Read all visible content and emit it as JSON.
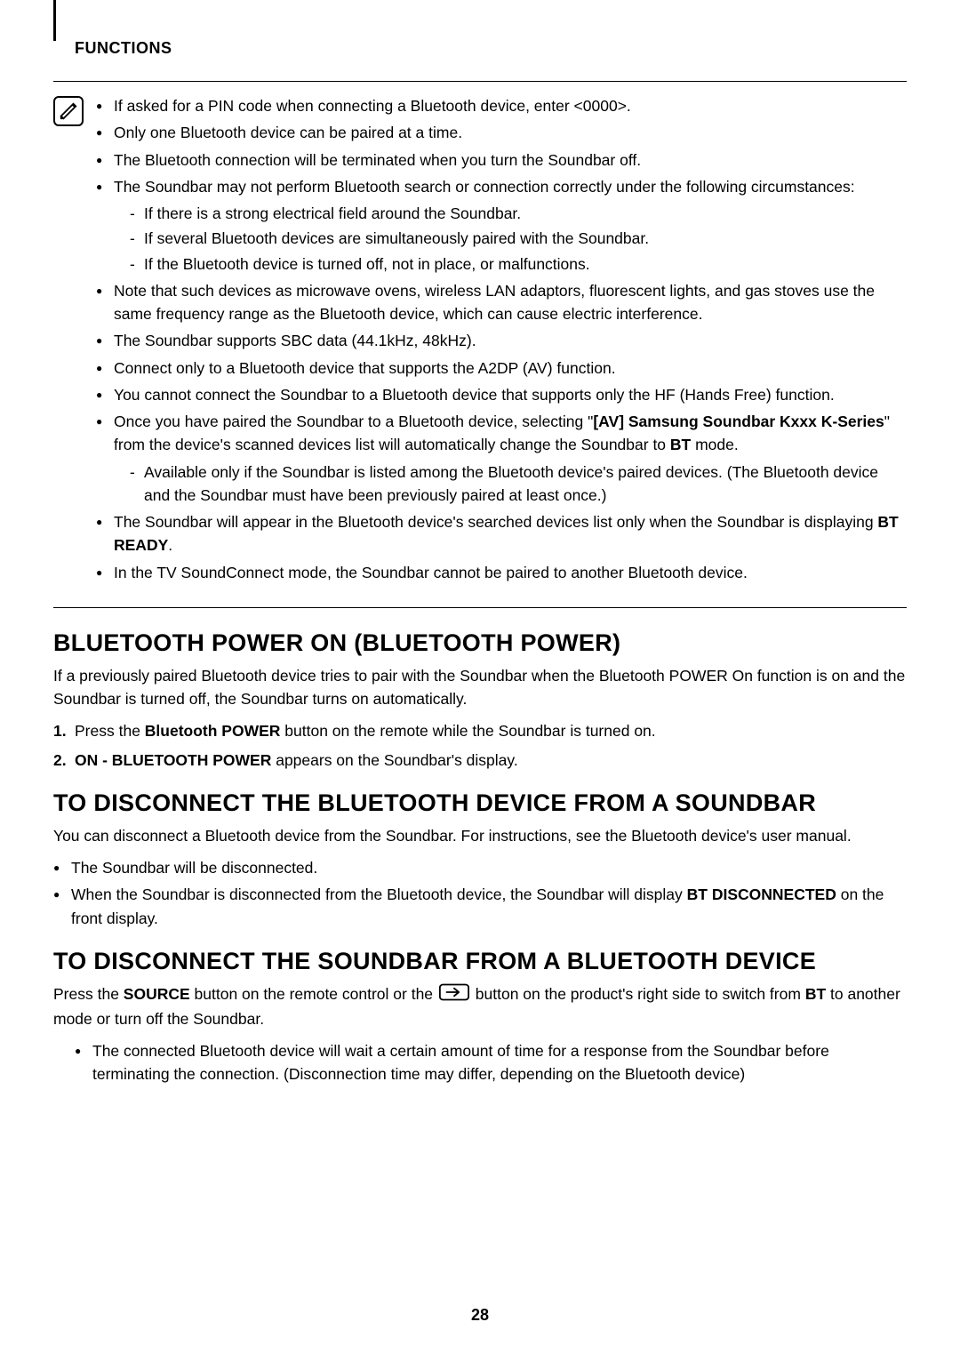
{
  "header": {
    "title": "FUNCTIONS"
  },
  "notes": {
    "items": [
      {
        "html": "If asked for a PIN code when connecting a Bluetooth device, enter <0000>."
      },
      {
        "html": "Only one Bluetooth device can be paired at a time."
      },
      {
        "html": "The Bluetooth connection will be terminated when you turn the Soundbar off."
      },
      {
        "html": "The Soundbar may not perform Bluetooth search or connection correctly under the following circumstances:",
        "sub": [
          "If there is a strong electrical field around the Soundbar.",
          "If several Bluetooth devices are simultaneously paired with the Soundbar.",
          "If the Bluetooth device is turned off, not in place, or malfunctions."
        ]
      },
      {
        "html": "Note that such devices as microwave ovens, wireless LAN adaptors, fluorescent lights, and gas stoves use the same frequency range as the Bluetooth device, which can cause electric interference."
      },
      {
        "html": "The Soundbar supports SBC data (44.1kHz, 48kHz)."
      },
      {
        "html": "Connect only to a Bluetooth device that supports the A2DP (AV) function."
      },
      {
        "html": "You cannot connect the Soundbar to a Bluetooth device that supports only the HF (Hands Free) function."
      },
      {
        "html": "Once you have paired the Soundbar to a Bluetooth device, selecting \"<span class='b'>[AV] Samsung Soundbar Kxxx K-Series</span>\" from the device's scanned devices list will automatically change the Soundbar to <span class='b'>BT</span> mode.",
        "sub": [
          "Available only if the Soundbar is listed among the Bluetooth device's paired devices. (The Bluetooth device and the Soundbar must have been previously paired at least once.)"
        ]
      },
      {
        "html": "The Soundbar will appear in the Bluetooth device's searched devices list only when the Soundbar is displaying <span class='b'>BT READY</span>."
      },
      {
        "html": "In the TV SoundConnect mode, the Soundbar cannot be paired to another Bluetooth device."
      }
    ]
  },
  "section1": {
    "title": "BLUETOOTH POWER ON (BLUETOOTH POWER)",
    "intro": "If a previously paired Bluetooth device tries to pair with the Soundbar when the Bluetooth POWER On function is on and the Soundbar is turned off, the Soundbar turns on automatically.",
    "steps": [
      "Press the <span class='b'>Bluetooth POWER</span> button on the remote while the Soundbar is turned on.",
      "<span class='b'>ON - BLUETOOTH POWER</span> appears on the Soundbar's display."
    ]
  },
  "section2": {
    "title": "TO DISCONNECT THE BLUETOOTH DEVICE FROM A SOUNDBAR",
    "intro": "You can disconnect a Bluetooth device from the Soundbar. For instructions, see the Bluetooth device's user manual.",
    "bullets": [
      "The Soundbar will be disconnected.",
      "When the Soundbar is disconnected from the Bluetooth device, the Soundbar will display <span class='b'>BT DISCONNECTED</span> on the front display."
    ]
  },
  "section3": {
    "title": "TO DISCONNECT THE SOUNDBAR FROM A BLUETOOTH DEVICE",
    "intro_pre": "Press the <span class='b'>SOURCE</span> button on the remote control or the ",
    "intro_post": " button on the product's right side to switch from <span class='b'>BT</span> to another mode or turn off the Soundbar.",
    "bullets": [
      "The connected Bluetooth device will wait a certain amount of time for a response from the Soundbar before terminating the connection. (Disconnection time may differ, depending on the Bluetooth device)"
    ]
  },
  "pageNumber": "28"
}
